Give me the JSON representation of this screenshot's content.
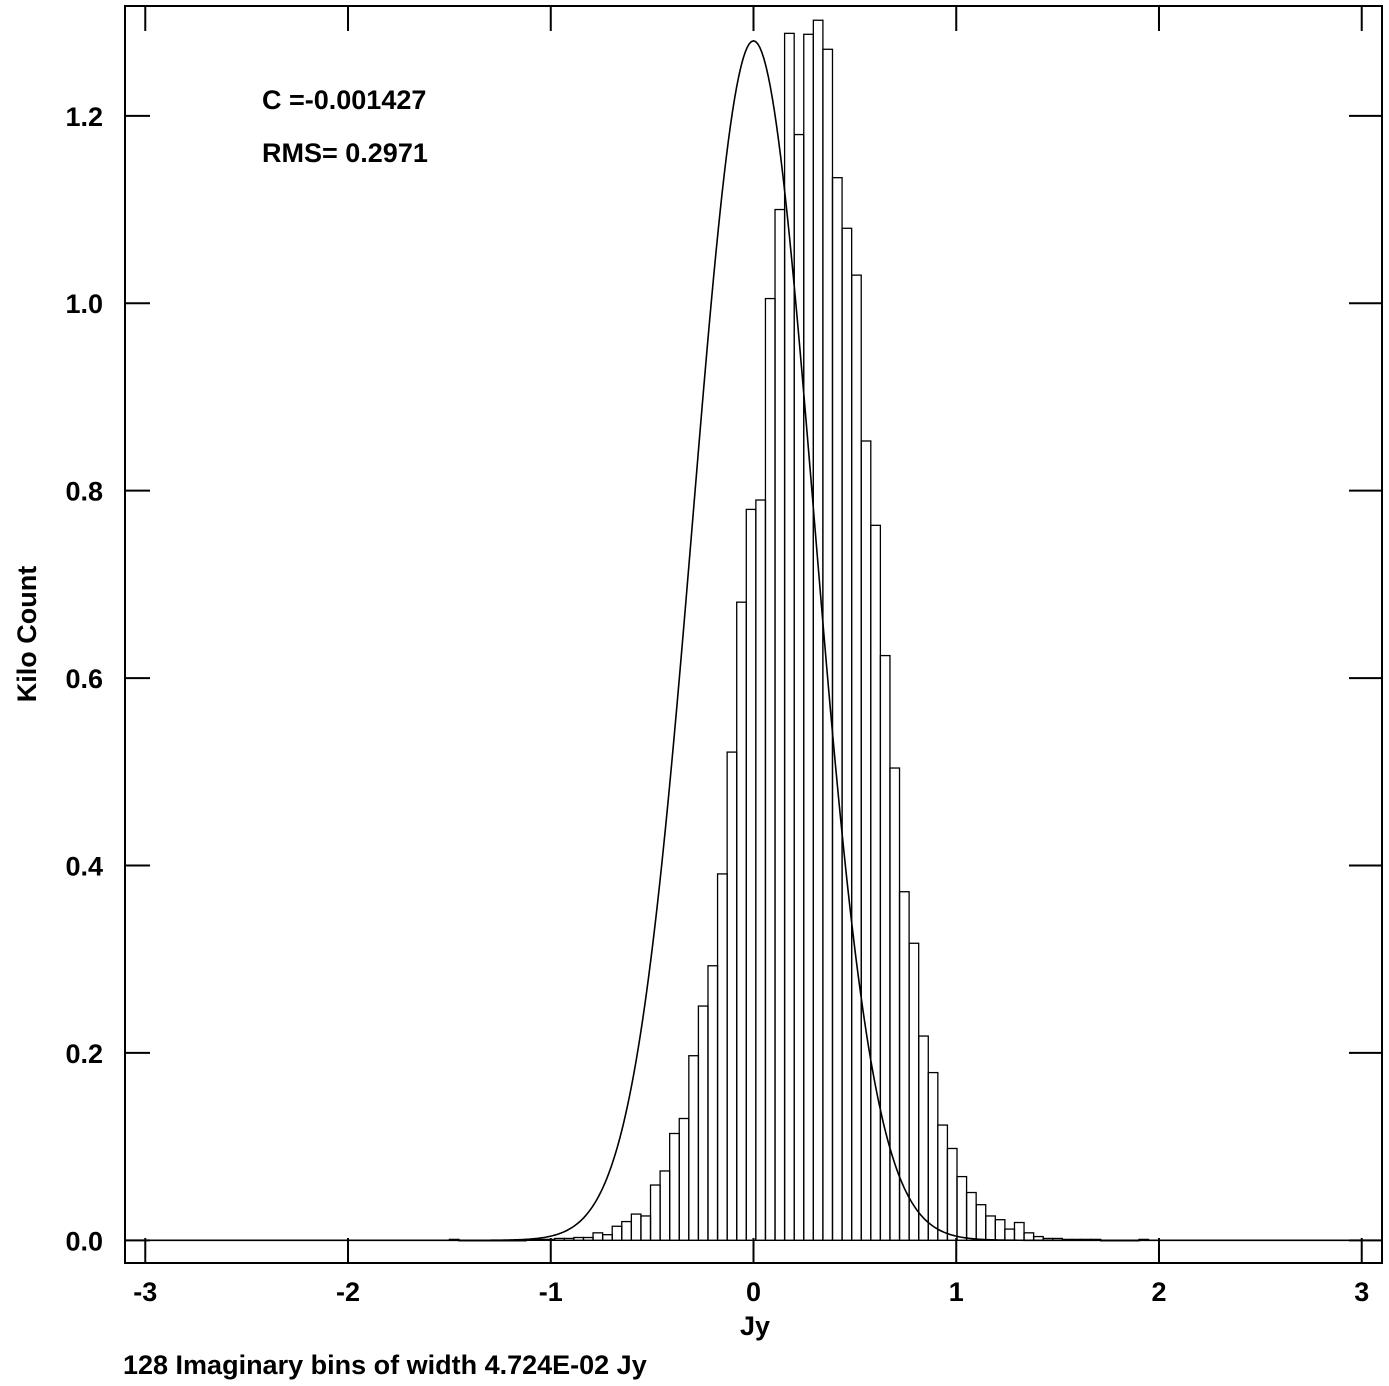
{
  "chart_data": {
    "type": "bar",
    "xlabel": "Jy",
    "ylabel": "Kilo Count",
    "footer": "128 Imaginary bins of width 4.724E-02 Jy",
    "annotations": [
      "C =-0.001427",
      "RMS= 0.2971"
    ],
    "xlim": [
      -3.1,
      3.1
    ],
    "ylim": [
      -0.0242,
      1.3172
    ],
    "x_ticks": [
      -3,
      -2,
      -1,
      0,
      1,
      2,
      3
    ],
    "x_tick_labels": [
      "-3",
      "-2",
      "-1",
      "0",
      "1",
      "2",
      "3"
    ],
    "y_ticks": [
      0.0,
      0.2,
      0.4,
      0.6,
      0.8,
      1.0,
      1.2
    ],
    "y_tick_labels": [
      "0.0",
      "0.2",
      "0.4",
      "0.6",
      "0.8",
      "1.0",
      "1.2"
    ],
    "bin_width": 0.04724,
    "bin_start": -1.5,
    "bin_values": [
      0.001,
      0.0,
      0.0,
      0.0,
      0.0,
      0.0,
      0.0,
      0.0,
      0.001,
      0.001,
      0.001,
      0.002,
      0.002,
      0.003,
      0.003,
      0.008,
      0.006,
      0.015,
      0.02,
      0.028,
      0.026,
      0.059,
      0.074,
      0.114,
      0.13,
      0.197,
      0.25,
      0.293,
      0.391,
      0.521,
      0.681,
      0.78,
      0.79,
      1.005,
      1.1,
      1.288,
      1.18,
      1.287,
      1.302,
      1.271,
      1.134,
      1.08,
      1.03,
      0.853,
      0.763,
      0.624,
      0.504,
      0.372,
      0.317,
      0.218,
      0.179,
      0.123,
      0.098,
      0.068,
      0.051,
      0.038,
      0.026,
      0.022,
      0.012,
      0.019,
      0.008,
      0.004,
      0.002,
      0.002,
      0.001,
      0.001,
      0.001,
      0.001,
      0.0,
      0.0,
      0.0,
      0.0,
      0.001
    ],
    "fit": {
      "type": "gaussian",
      "center": 0.0,
      "sigma": 0.2971,
      "amplitude": 1.28
    }
  }
}
